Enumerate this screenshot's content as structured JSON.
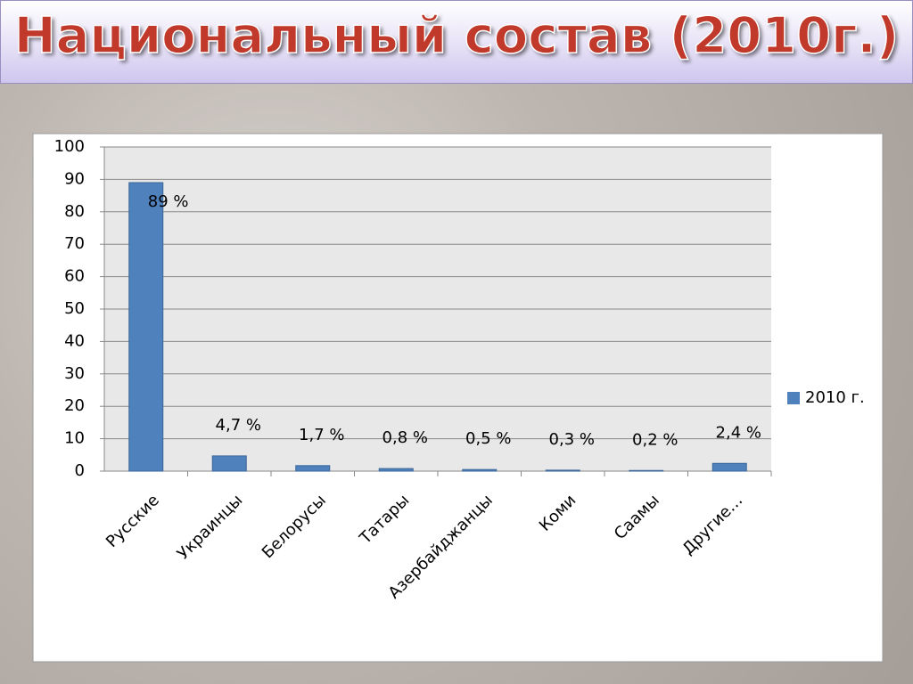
{
  "chart_data": {
    "type": "bar",
    "title": "Национальный состав (2010г.)",
    "categories": [
      "Русские",
      "Украинцы",
      "Белорусы",
      "Татары",
      "Азербайджанцы",
      "Коми",
      "Саамы",
      "Другие…"
    ],
    "series": [
      {
        "name": "2010 г.",
        "color": "#4f81bd",
        "values": [
          89,
          4.7,
          1.7,
          0.8,
          0.5,
          0.3,
          0.2,
          2.4
        ],
        "value_labels": [
          "89 %",
          "4,7 %",
          "1,7 %",
          "0,8 %",
          "0,5 %",
          "0,3 %",
          "0,2 %",
          "2,4 %"
        ]
      }
    ],
    "ylim": [
      0,
      100
    ],
    "yticks": [
      0,
      10,
      20,
      30,
      40,
      50,
      60,
      70,
      80,
      90,
      100
    ],
    "grid": true,
    "legend": "right"
  }
}
